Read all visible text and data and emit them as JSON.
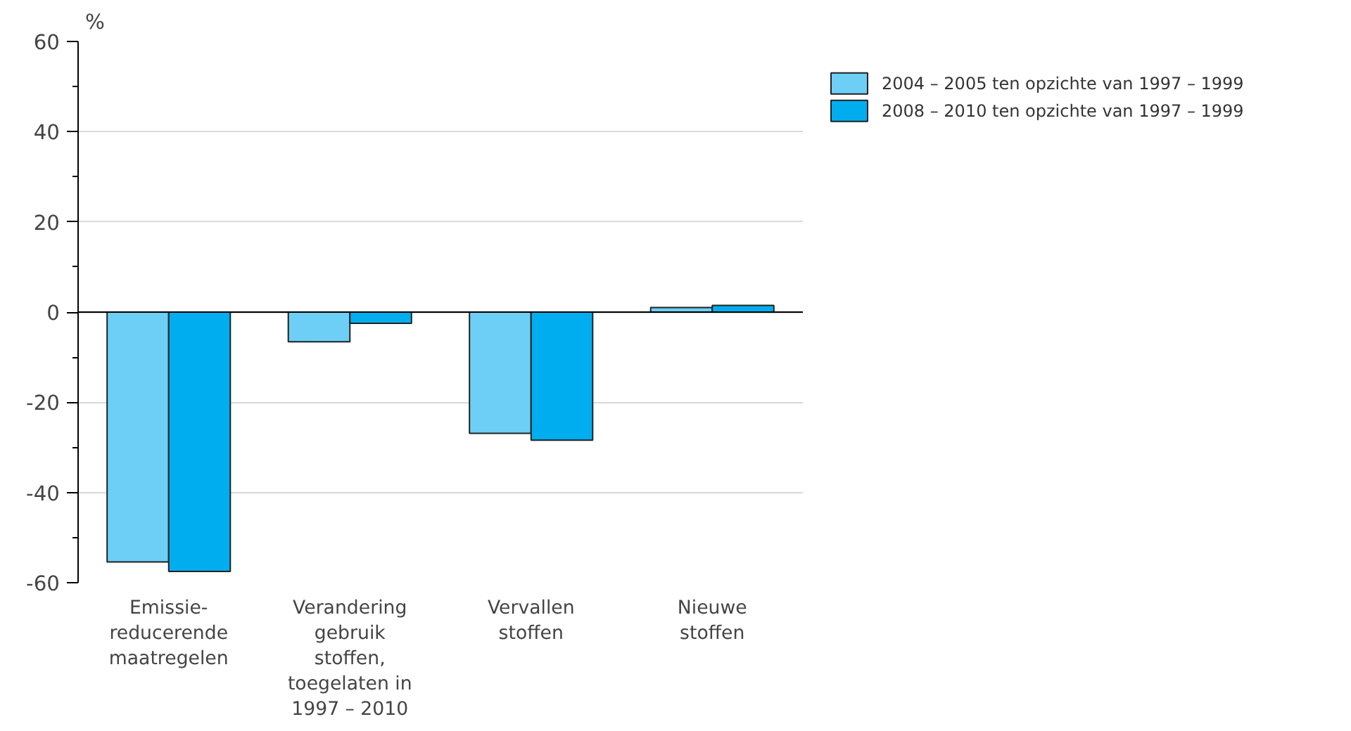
{
  "chart_data": {
    "type": "bar",
    "ylabel": "%",
    "categories": [
      "Emissie-\nreducerende\nmaatregelen",
      "Verandering\ngebruik\nstoffen,\ntoegelaten in\n1997 – 2010",
      "Vervallen\nstoffen",
      "Nieuwe\nstoffen"
    ],
    "series": [
      {
        "name": "2004 – 2005 ten opzichte van 1997 – 1999",
        "color": "#6dcff6",
        "values": [
          -55.4,
          -6.6,
          -26.9,
          1.0
        ]
      },
      {
        "name": "2008 – 2010 ten opzichte van 1997 – 1999",
        "color": "#00aeef",
        "values": [
          -57.5,
          -2.5,
          -28.4,
          1.5
        ]
      }
    ],
    "ylim": [
      -60,
      60
    ],
    "yticks": [
      -60,
      {
        "value": -50,
        "label": null
      },
      -40,
      {
        "value": -30,
        "label": null
      },
      -20,
      {
        "value": -10,
        "label": null
      },
      0,
      {
        "value": 10,
        "label": null
      },
      20,
      {
        "value": 30,
        "label": null
      },
      40,
      {
        "value": 50,
        "label": null
      },
      60
    ],
    "grid": "y",
    "legend": "top right"
  }
}
